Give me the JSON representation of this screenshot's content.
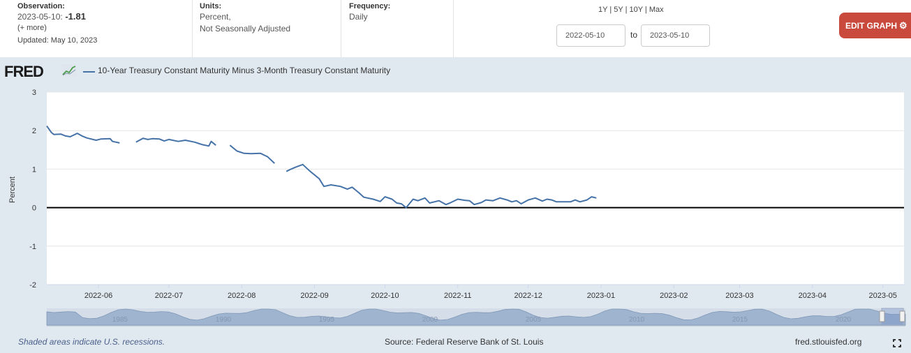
{
  "observation": {
    "label": "Observation:",
    "date": "2023-05-10:",
    "value": "-1.81",
    "more": "(+ more)",
    "updated": "Updated: May 10, 2023"
  },
  "units": {
    "label": "Units:",
    "line1": "Percent,",
    "line2": "Not Seasonally Adjusted"
  },
  "frequency": {
    "label": "Frequency:",
    "value": "Daily"
  },
  "range_links": [
    "1Y",
    "5Y",
    "10Y",
    "Max"
  ],
  "date_range": {
    "start": "2022-05-10",
    "to_label": "to",
    "end": "2023-05-10"
  },
  "edit_button": "EDIT GRAPH",
  "logo_text": "FRED",
  "colors": {
    "series": "#4572a7",
    "edit_button": "#c94a3d",
    "panel_bg": "#e1e9f0",
    "zero_line": "#000000",
    "navigator_fill": "#9fb4ce"
  },
  "footer": {
    "recession_note": "Shaded areas indicate U.S. recessions.",
    "source": "Source: Federal Reserve Bank of St. Louis",
    "site": "fred.stlouisfed.org"
  },
  "navigator_labels": [
    "1985",
    "1990",
    "1995",
    "2000",
    "2005",
    "2010",
    "2015",
    "2020"
  ],
  "chart_data": {
    "type": "line",
    "title": "",
    "ylabel": "Percent",
    "xlabel": "",
    "xlim": [
      "2022-05-10",
      "2023-05-10"
    ],
    "ylim": [
      -2,
      3
    ],
    "yticks": [
      -2,
      -1,
      0,
      1,
      2,
      3
    ],
    "xticks": [
      "2022-06",
      "2022-07",
      "2022-08",
      "2022-09",
      "2022-10",
      "2022-11",
      "2022-12",
      "2023-01",
      "2023-02",
      "2023-03",
      "2023-04",
      "2023-05"
    ],
    "grid": true,
    "legend": "top-left",
    "series": [
      {
        "name": "10-Year Treasury Constant Maturity Minus 3-Month Treasury Constant Maturity",
        "segments": [
          [
            [
              "2022-05-10",
              2.12
            ],
            [
              "2022-05-12",
              1.95
            ],
            [
              "2022-05-13",
              1.9
            ],
            [
              "2022-05-16",
              1.91
            ],
            [
              "2022-05-18",
              1.86
            ],
            [
              "2022-05-20",
              1.84
            ],
            [
              "2022-05-23",
              1.93
            ],
            [
              "2022-05-25",
              1.86
            ],
            [
              "2022-05-27",
              1.81
            ],
            [
              "2022-05-31",
              1.75
            ],
            [
              "2022-06-02",
              1.78
            ],
            [
              "2022-06-06",
              1.79
            ],
            [
              "2022-06-07",
              1.72
            ],
            [
              "2022-06-10",
              1.68
            ]
          ],
          [
            [
              "2022-06-17",
              1.7
            ],
            [
              "2022-06-20",
              1.8
            ],
            [
              "2022-06-22",
              1.77
            ],
            [
              "2022-06-24",
              1.79
            ],
            [
              "2022-06-27",
              1.78
            ],
            [
              "2022-06-29",
              1.73
            ],
            [
              "2022-07-01",
              1.77
            ],
            [
              "2022-07-05",
              1.72
            ],
            [
              "2022-07-08",
              1.75
            ],
            [
              "2022-07-12",
              1.7
            ],
            [
              "2022-07-14",
              1.66
            ],
            [
              "2022-07-15",
              1.64
            ],
            [
              "2022-07-18",
              1.6
            ],
            [
              "2022-07-19",
              1.72
            ],
            [
              "2022-07-21",
              1.62
            ]
          ],
          [
            [
              "2022-07-27",
              1.62
            ],
            [
              "2022-07-30",
              1.47
            ],
            [
              "2022-08-02",
              1.41
            ],
            [
              "2022-08-05",
              1.4
            ],
            [
              "2022-08-09",
              1.41
            ],
            [
              "2022-08-12",
              1.32
            ],
            [
              "2022-08-15",
              1.15
            ]
          ],
          [
            [
              "2022-08-20",
              0.94
            ],
            [
              "2022-08-22",
              1.0
            ],
            [
              "2022-08-24",
              1.05
            ],
            [
              "2022-08-27",
              1.12
            ],
            [
              "2022-08-30",
              0.95
            ],
            [
              "2022-09-03",
              0.75
            ],
            [
              "2022-09-05",
              0.55
            ],
            [
              "2022-09-08",
              0.59
            ],
            [
              "2022-09-12",
              0.55
            ],
            [
              "2022-09-15",
              0.48
            ],
            [
              "2022-09-17",
              0.53
            ],
            [
              "2022-09-20",
              0.38
            ],
            [
              "2022-09-22",
              0.27
            ],
            [
              "2022-09-26",
              0.22
            ],
            [
              "2022-09-29",
              0.16
            ],
            [
              "2022-10-01",
              0.28
            ],
            [
              "2022-10-04",
              0.22
            ],
            [
              "2022-10-06",
              0.12
            ],
            [
              "2022-10-08",
              0.1
            ],
            [
              "2022-10-10",
              0.0
            ],
            [
              "2022-10-13",
              0.22
            ],
            [
              "2022-10-15",
              0.18
            ],
            [
              "2022-10-18",
              0.25
            ],
            [
              "2022-10-20",
              0.12
            ],
            [
              "2022-10-24",
              0.18
            ],
            [
              "2022-10-27",
              0.08
            ],
            [
              "2022-10-29",
              0.13
            ],
            [
              "2022-11-01",
              0.22
            ],
            [
              "2022-11-04",
              0.19
            ],
            [
              "2022-11-06",
              0.18
            ],
            [
              "2022-11-08",
              0.08
            ],
            [
              "2022-11-11",
              0.13
            ],
            [
              "2022-11-13",
              0.2
            ],
            [
              "2022-11-16",
              0.18
            ],
            [
              "2022-11-19",
              0.25
            ],
            [
              "2022-11-22",
              0.2
            ],
            [
              "2022-11-24",
              0.15
            ],
            [
              "2022-11-26",
              0.18
            ],
            [
              "2022-11-28",
              0.1
            ],
            [
              "2022-12-01",
              0.2
            ],
            [
              "2022-12-04",
              0.25
            ],
            [
              "2022-12-07",
              0.17
            ],
            [
              "2022-12-09",
              0.22
            ],
            [
              "2022-12-11",
              0.2
            ],
            [
              "2022-12-13",
              0.15
            ],
            [
              "2022-12-16",
              0.15
            ],
            [
              "2022-12-19",
              0.15
            ],
            [
              "2022-12-21",
              0.2
            ],
            [
              "2022-12-23",
              0.15
            ],
            [
              "2022-12-26",
              0.2
            ],
            [
              "2022-12-28",
              0.28
            ],
            [
              "2022-12-30",
              0.25
            ]
          ]
        ]
      }
    ]
  }
}
